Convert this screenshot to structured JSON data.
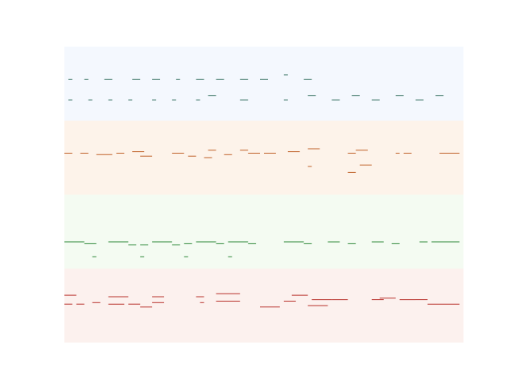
{
  "chart_data": {
    "type": "line",
    "title": "",
    "xlabel": "",
    "ylabel": "",
    "grid": false,
    "legend": "none",
    "axes_visible": false,
    "xlim": [
      0,
      100
    ],
    "tracks": [
      {
        "band_color": "#f4f8fe",
        "line_color": "#2e6b5a",
        "segments": [
          [
            1,
            2,
            0.44
          ],
          [
            5,
            6,
            0.44
          ],
          [
            10,
            12,
            0.44
          ],
          [
            17,
            19,
            0.44
          ],
          [
            22,
            24,
            0.44
          ],
          [
            28,
            29,
            0.44
          ],
          [
            33,
            35,
            0.44
          ],
          [
            38,
            40,
            0.44
          ],
          [
            44,
            46,
            0.44
          ],
          [
            49,
            51,
            0.44
          ],
          [
            55,
            56,
            0.38
          ],
          [
            60,
            62,
            0.44
          ],
          [
            1,
            2,
            0.72
          ],
          [
            6,
            7,
            0.72
          ],
          [
            11,
            12,
            0.72
          ],
          [
            16,
            17,
            0.72
          ],
          [
            22,
            23,
            0.72
          ],
          [
            27,
            28,
            0.72
          ],
          [
            33,
            34,
            0.72
          ],
          [
            36,
            38,
            0.66
          ],
          [
            44,
            46,
            0.72
          ],
          [
            55,
            56,
            0.72
          ],
          [
            61,
            63,
            0.66
          ],
          [
            67,
            69,
            0.72
          ],
          [
            72,
            74,
            0.66
          ],
          [
            77,
            79,
            0.72
          ],
          [
            83,
            85,
            0.66
          ],
          [
            88,
            90,
            0.72
          ],
          [
            93,
            95,
            0.66
          ]
        ]
      },
      {
        "band_color": "#fdf3ea",
        "line_color": "#c0622a",
        "segments": [
          [
            0,
            2,
            0.44
          ],
          [
            4,
            6,
            0.44
          ],
          [
            8,
            12,
            0.46
          ],
          [
            13,
            15,
            0.44
          ],
          [
            17,
            20,
            0.42
          ],
          [
            19,
            22,
            0.48
          ],
          [
            27,
            30,
            0.44
          ],
          [
            31,
            33,
            0.48
          ],
          [
            36,
            38,
            0.4
          ],
          [
            35,
            37,
            0.5
          ],
          [
            44,
            46,
            0.4
          ],
          [
            40,
            42,
            0.46
          ],
          [
            46,
            49,
            0.44
          ],
          [
            50,
            53,
            0.44
          ],
          [
            56,
            59,
            0.42
          ],
          [
            61,
            64,
            0.38
          ],
          [
            61,
            62,
            0.62
          ],
          [
            73,
            76,
            0.4
          ],
          [
            71,
            73,
            0.44
          ],
          [
            71,
            73,
            0.7
          ],
          [
            74,
            77,
            0.6
          ],
          [
            83,
            84,
            0.44
          ],
          [
            85,
            87,
            0.44
          ],
          [
            94,
            99,
            0.44
          ]
        ]
      },
      {
        "band_color": "#f4fbf2",
        "line_color": "#2f8a3a",
        "segments": [
          [
            0,
            5,
            0.64
          ],
          [
            5,
            8,
            0.66
          ],
          [
            11,
            16,
            0.64
          ],
          [
            16,
            18,
            0.68
          ],
          [
            19,
            21,
            0.68
          ],
          [
            22,
            27,
            0.64
          ],
          [
            27,
            29,
            0.68
          ],
          [
            30,
            32,
            0.66
          ],
          [
            33,
            38,
            0.64
          ],
          [
            38,
            40,
            0.66
          ],
          [
            41,
            46,
            0.64
          ],
          [
            46,
            48,
            0.66
          ],
          [
            55,
            60,
            0.64
          ],
          [
            60,
            62,
            0.66
          ],
          [
            66,
            69,
            0.64
          ],
          [
            71,
            73,
            0.66
          ],
          [
            77,
            80,
            0.64
          ],
          [
            82,
            84,
            0.66
          ],
          [
            89,
            91,
            0.64
          ],
          [
            92,
            99,
            0.64
          ],
          [
            7,
            8,
            0.84
          ],
          [
            19,
            20,
            0.84
          ],
          [
            30,
            31,
            0.84
          ],
          [
            41,
            42,
            0.84
          ]
        ]
      },
      {
        "band_color": "#fcf1ee",
        "line_color": "#b8322c",
        "segments": [
          [
            0,
            3,
            0.36
          ],
          [
            0,
            2,
            0.48
          ],
          [
            3,
            5,
            0.48
          ],
          [
            7,
            9,
            0.46
          ],
          [
            11,
            16,
            0.38
          ],
          [
            11,
            15,
            0.48
          ],
          [
            16,
            19,
            0.48
          ],
          [
            19,
            22,
            0.52
          ],
          [
            22,
            25,
            0.38
          ],
          [
            22,
            25,
            0.46
          ],
          [
            33,
            35,
            0.38
          ],
          [
            34,
            35,
            0.46
          ],
          [
            38,
            44,
            0.34
          ],
          [
            38,
            44,
            0.44
          ],
          [
            49,
            54,
            0.52
          ],
          [
            55,
            58,
            0.44
          ],
          [
            57,
            61,
            0.36
          ],
          [
            61,
            66,
            0.5
          ],
          [
            62,
            67,
            0.42
          ],
          [
            67,
            71,
            0.42
          ],
          [
            77,
            80,
            0.42
          ],
          [
            79,
            83,
            0.4
          ],
          [
            84,
            88,
            0.42
          ],
          [
            88,
            91,
            0.42
          ],
          [
            91,
            99,
            0.48
          ]
        ]
      }
    ]
  }
}
